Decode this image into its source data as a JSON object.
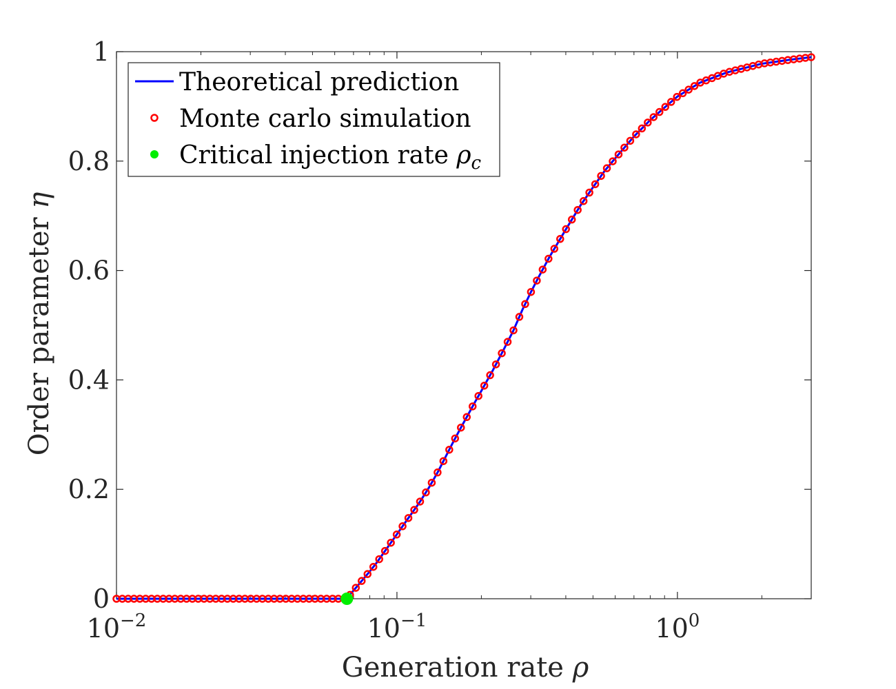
{
  "chart_data": {
    "type": "line",
    "xscale": "log",
    "xlim": [
      0.01,
      3
    ],
    "ylim": [
      0,
      1
    ],
    "grid": false,
    "box": true,
    "legend_position": "top-left",
    "xlabel": {
      "text": "Generation rate ",
      "symbol": "ρ"
    },
    "ylabel": {
      "text": "Order parameter ",
      "symbol": "η"
    },
    "x_ticks": [
      {
        "value": 0.01,
        "base": "10",
        "exp": "−2"
      },
      {
        "value": 0.1,
        "base": "10",
        "exp": "−1"
      },
      {
        "value": 1,
        "base": "10",
        "exp": "0"
      }
    ],
    "y_ticks": [
      {
        "value": 0,
        "label": "0"
      },
      {
        "value": 0.2,
        "label": "0.2"
      },
      {
        "value": 0.4,
        "label": "0.4"
      },
      {
        "value": 0.6,
        "label": "0.6"
      },
      {
        "value": 0.8,
        "label": "0.8"
      },
      {
        "value": 1,
        "label": "1"
      }
    ],
    "series": [
      {
        "name": "Theoretical prediction",
        "kind": "line",
        "color": "#0000ff",
        "points": [
          [
            0.01,
            0
          ],
          [
            0.0663,
            0
          ],
          [
            0.07,
            0.015
          ],
          [
            0.075,
            0.033
          ],
          [
            0.08,
            0.05
          ],
          [
            0.085,
            0.067
          ],
          [
            0.09,
            0.085
          ],
          [
            0.1,
            0.118
          ],
          [
            0.11,
            0.148
          ],
          [
            0.12,
            0.175
          ],
          [
            0.13,
            0.203
          ],
          [
            0.14,
            0.232
          ],
          [
            0.15,
            0.262
          ],
          [
            0.16,
            0.29
          ],
          [
            0.17,
            0.315
          ],
          [
            0.18,
            0.338
          ],
          [
            0.19,
            0.36
          ],
          [
            0.2,
            0.38
          ],
          [
            0.22,
            0.418
          ],
          [
            0.24,
            0.455
          ],
          [
            0.26,
            0.49
          ],
          [
            0.28,
            0.528
          ],
          [
            0.3,
            0.56
          ],
          [
            0.32,
            0.588
          ],
          [
            0.35,
            0.625
          ],
          [
            0.4,
            0.675
          ],
          [
            0.45,
            0.718
          ],
          [
            0.5,
            0.752
          ],
          [
            0.55,
            0.782
          ],
          [
            0.6,
            0.805
          ],
          [
            0.7,
            0.845
          ],
          [
            0.8,
            0.875
          ],
          [
            0.9,
            0.898
          ],
          [
            1.0,
            0.918
          ],
          [
            1.2,
            0.943
          ],
          [
            1.5,
            0.962
          ],
          [
            2.0,
            0.978
          ],
          [
            2.5,
            0.985
          ],
          [
            3.0,
            0.99
          ]
        ]
      },
      {
        "name": "Monte carlo simulation",
        "kind": "markers",
        "color": "#ff0000",
        "x_start": 0.01,
        "x_end": 3,
        "count": 120
      },
      {
        "name": "Critical injection rate ",
        "name_symbol": "ρ",
        "name_subscript": "c",
        "kind": "point",
        "color": "#00ee00",
        "x": 0.0663,
        "y": 0
      }
    ]
  }
}
